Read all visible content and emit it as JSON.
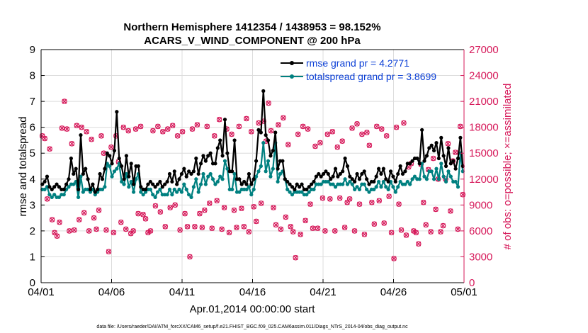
{
  "chart_data": {
    "type": "line",
    "title_line1": "Northern Hemisphere 1412354 / 1438953 = 98.152%",
    "title_line2": "ACARS_V_WIND_COMPONENT @ 200 hPa",
    "xlabel": "Apr.01,2014 00:00:00 start",
    "ylabel_left": "rmse and totalspread",
    "ylabel_right": "# of obs: o=possible; ×=assimilated",
    "footer": "data file: /Users/raeder/DAI/ATM_forcXX/CAM6_setup/f.e21.FHIST_BGC.f09_025.CAM6assim.011/Diags_NTrS_2014-04/obs_diag_output.nc",
    "xlim": [
      0,
      30
    ],
    "ylim_left": [
      0,
      9
    ],
    "ylim_right": [
      0,
      27000
    ],
    "x_tick_values": [
      0,
      5,
      10,
      15,
      20,
      25,
      30
    ],
    "x_tick_labels": [
      "04/01",
      "04/06",
      "04/11",
      "04/16",
      "04/21",
      "04/26",
      "05/01"
    ],
    "y_left_ticks": [
      "0",
      "1",
      "2",
      "3",
      "4",
      "5",
      "6",
      "7",
      "8",
      "9"
    ],
    "y_right_ticks": [
      "0",
      "3000",
      "6000",
      "9000",
      "12000",
      "15000",
      "18000",
      "21000",
      "24000",
      "27000"
    ],
    "colors": {
      "rmse": "#000000",
      "spread": "#008080",
      "obs": "#d6195a",
      "legend_text": "#0b3fd6"
    },
    "series": [
      {
        "name": "rmse grand pr = 4.2771",
        "marker": "circle-filled",
        "values": [
          3.8,
          3.9,
          4.1,
          3.7,
          3.6,
          3.7,
          3.8,
          3.7,
          3.6,
          3.6,
          3.8,
          4.0,
          4.8,
          4.2,
          4.4,
          3.6,
          5.7,
          4.2,
          4.4,
          4.0,
          3.6,
          3.8,
          3.5,
          3.6,
          4.2,
          4.0,
          4.4,
          5.0,
          4.9,
          4.6,
          5.1,
          6.6,
          4.8,
          4.5,
          4.0,
          4.9,
          4.1,
          4.6,
          3.8,
          4.5,
          4.5,
          3.7,
          3.6,
          3.6,
          3.8,
          3.9,
          3.8,
          3.7,
          3.8,
          3.9,
          3.7,
          3.8,
          3.9,
          4.2,
          3.9,
          4.3,
          3.8,
          4.0,
          4.2,
          4.4,
          4.1,
          4.3,
          4.2,
          4.3,
          4.8,
          4.2,
          4.6,
          4.9,
          4.7,
          4.9,
          5.0,
          4.6,
          4.6,
          5.2,
          5.5,
          4.9,
          6.3,
          5.0,
          4.3,
          4.3,
          5.5,
          4.0,
          4.0,
          3.8,
          3.9,
          3.8,
          4.2,
          3.8,
          4.0,
          4.7,
          5.9,
          5.8,
          7.4,
          5.7,
          5.5,
          4.9,
          5.1,
          5.8,
          4.4,
          4.7,
          4.7,
          4.0,
          3.9,
          3.8,
          3.7,
          3.6,
          3.8,
          3.7,
          3.8,
          3.6,
          3.6,
          3.7,
          3.8,
          3.9,
          4.1,
          4.2,
          4.1,
          4.2,
          4.3,
          4.2,
          4.0,
          4.1,
          4.4,
          4.1,
          4.2,
          4.3,
          4.8,
          4.5,
          4.1,
          4.0,
          3.9,
          4.2,
          4.0,
          4.2,
          4.3,
          4.0,
          3.8,
          3.9,
          3.9,
          4.1,
          4.4,
          4.2,
          4.4,
          4.0,
          3.9,
          4.3,
          4.1,
          3.9,
          4.2,
          4.5,
          4.2,
          4.3,
          4.6,
          4.6,
          4.7,
          4.8,
          4.8,
          4.6,
          5.9,
          4.7,
          4.9,
          5.2,
          5.3,
          5.1,
          5.4,
          4.8,
          5.6,
          4.9,
          4.5,
          5.2,
          4.6,
          4.7,
          4.4,
          4.8,
          5.6,
          4.5
        ]
      },
      {
        "name": "totalspread grand pr = 3.8699",
        "marker": "circle-filled",
        "values": [
          3.6,
          3.6,
          3.7,
          3.4,
          3.3,
          3.4,
          3.3,
          3.3,
          3.4,
          3.4,
          3.6,
          3.7,
          3.8,
          3.8,
          3.9,
          3.3,
          4.1,
          3.5,
          3.6,
          3.6,
          3.5,
          3.6,
          3.4,
          3.5,
          3.6,
          3.6,
          3.7,
          4.6,
          4.5,
          4.1,
          4.3,
          4.4,
          4.6,
          3.9,
          3.8,
          4.2,
          3.7,
          3.9,
          3.5,
          4.0,
          4.2,
          3.5,
          3.4,
          3.5,
          3.6,
          3.6,
          3.4,
          3.3,
          3.5,
          3.6,
          3.4,
          3.4,
          3.4,
          3.6,
          3.4,
          3.6,
          3.5,
          3.6,
          3.5,
          3.8,
          3.6,
          3.4,
          3.3,
          3.7,
          4.0,
          3.5,
          3.8,
          4.2,
          3.8,
          4.1,
          4.2,
          4.0,
          3.8,
          3.9,
          4.1,
          4.0,
          4.7,
          4.4,
          3.6,
          3.6,
          4.2,
          3.5,
          3.5,
          3.6,
          3.6,
          3.6,
          3.7,
          3.4,
          3.6,
          4.1,
          4.3,
          4.5,
          5.4,
          4.3,
          4.7,
          4.1,
          4.4,
          5.4,
          3.9,
          4.2,
          4.3,
          4.0,
          3.6,
          3.5,
          3.4,
          3.5,
          3.5,
          3.5,
          3.5,
          3.4,
          3.4,
          3.5,
          3.6,
          3.6,
          3.8,
          3.8,
          3.8,
          3.9,
          3.9,
          3.9,
          3.8,
          3.8,
          3.7,
          3.8,
          3.8,
          3.8,
          4.0,
          3.8,
          3.9,
          3.8,
          3.6,
          3.7,
          3.6,
          3.8,
          3.8,
          3.6,
          3.5,
          3.6,
          3.6,
          3.7,
          3.9,
          3.7,
          3.9,
          3.7,
          3.6,
          3.9,
          3.7,
          3.5,
          3.7,
          3.9,
          3.8,
          3.8,
          3.9,
          3.8,
          4.0,
          4.1,
          4.0,
          4.0,
          4.6,
          4.1,
          4.0,
          4.3,
          4.3,
          4.0,
          4.4,
          4.0,
          4.6,
          4.1,
          3.9,
          4.3,
          4.1,
          3.9,
          3.9,
          3.7,
          5.0,
          4.3
        ]
      }
    ],
    "obs_possible": [
      17000,
      16700,
      9700,
      15500,
      7300,
      5800,
      5400,
      7000,
      17900,
      21000,
      17800,
      6000,
      16100,
      6100,
      18200,
      7300,
      18000,
      8100,
      17500,
      6000,
      16600,
      7500,
      6200,
      8400,
      17000,
      15000,
      6100,
      3600,
      15700,
      5800,
      17000,
      14000,
      7000,
      18000,
      6200,
      17600,
      5700,
      6000,
      17800,
      8000,
      18100,
      7900,
      7400,
      5800,
      6000,
      17600,
      8900,
      18100,
      8200,
      17500,
      6500,
      17800,
      8700,
      18200,
      9000,
      17000,
      6100,
      17500,
      8000,
      6500,
      3000,
      17800,
      6500,
      18300,
      8000,
      6400,
      8400,
      18100,
      9200,
      6300,
      17000,
      9500,
      18900,
      6200,
      8700,
      17800,
      5800,
      17200,
      8400,
      6400,
      18100,
      8600,
      6500,
      19000,
      5900,
      17500,
      8800,
      7100,
      18500,
      9200,
      18700,
      16400,
      20800,
      17600,
      8700,
      6700,
      18300,
      6200,
      19100,
      7600,
      16000,
      6500,
      5900,
      2900,
      17200,
      5600,
      18100,
      7200,
      17800,
      9100,
      6300,
      15800,
      6300,
      16200,
      9800,
      6000,
      17200,
      9700,
      17500,
      6000,
      15700,
      9800,
      16400,
      6400,
      9300,
      9700,
      17900,
      6000,
      18400,
      9100,
      17200,
      5600,
      17400,
      15900,
      9300,
      6800,
      18100,
      9500,
      17800,
      6900,
      17000,
      10000,
      5800,
      2800,
      18000,
      9100,
      6100,
      18500,
      5500,
      13400,
      13800,
      6000,
      5800,
      4500,
      13700,
      9300,
      6700,
      13100,
      5900,
      14400,
      8500,
      12000,
      5900,
      6600,
      12000,
      16100,
      8300,
      14100,
      15100,
      6200,
      18100,
      10200
    ]
  }
}
